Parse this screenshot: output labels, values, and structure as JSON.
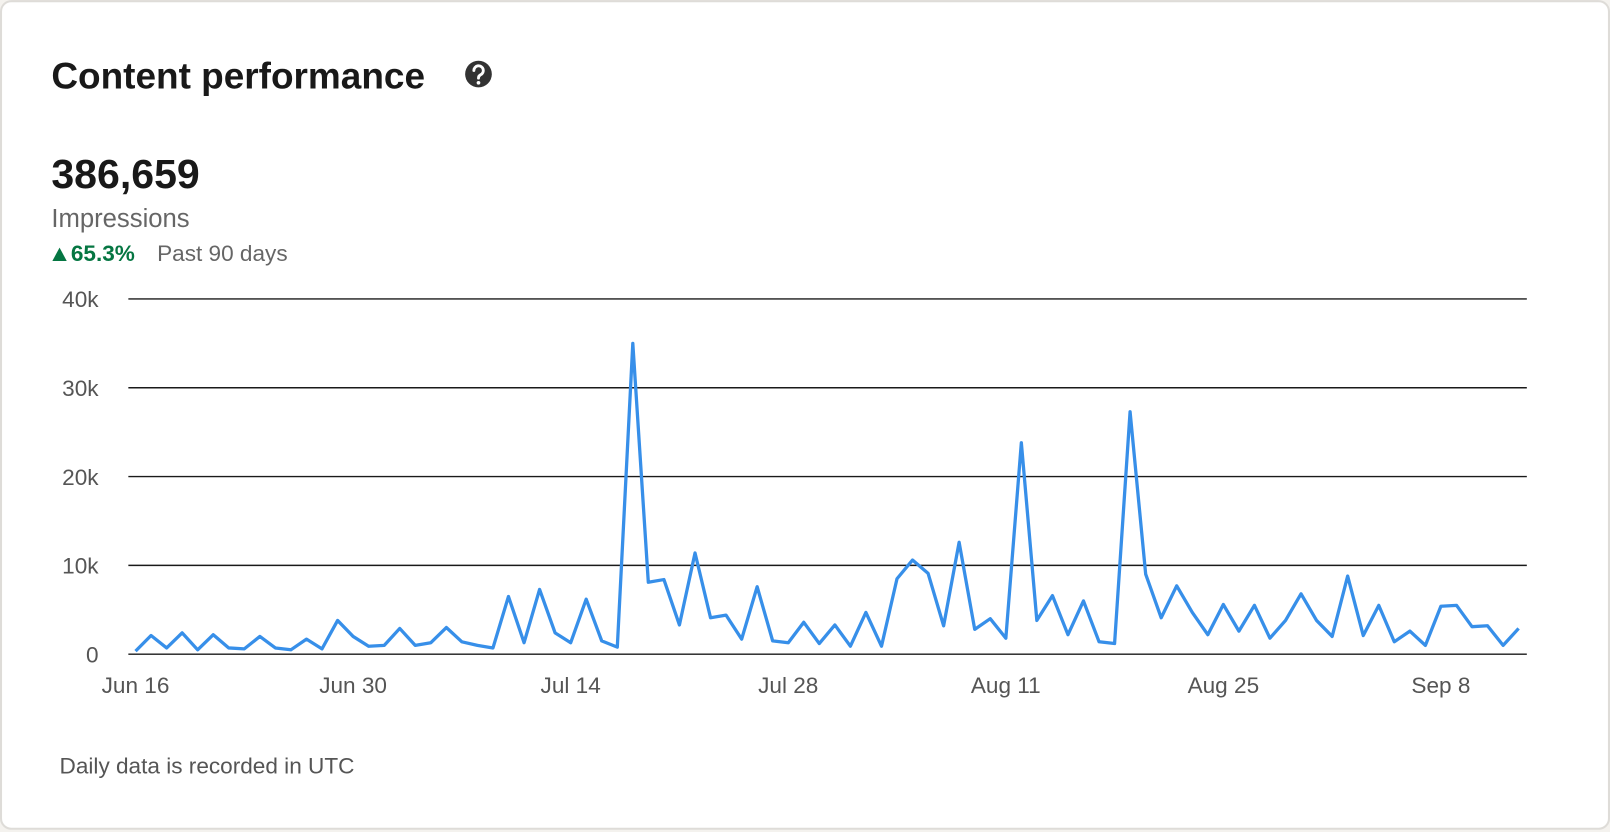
{
  "card": {
    "title": "Content performance",
    "metric_value": "386,659",
    "metric_label": "Impressions",
    "change": "65.3%",
    "period": "Past 90 days",
    "footnote": "Daily data is recorded in UTC"
  },
  "chart_data": {
    "type": "line",
    "categories": [
      "Jun 16",
      null,
      null,
      null,
      null,
      null,
      null,
      null,
      null,
      null,
      null,
      null,
      null,
      null,
      "Jun 30",
      null,
      null,
      null,
      null,
      null,
      null,
      null,
      null,
      null,
      null,
      null,
      null,
      null,
      "Jul 14",
      null,
      null,
      null,
      null,
      null,
      null,
      null,
      null,
      null,
      null,
      null,
      null,
      null,
      "Jul 28",
      null,
      null,
      null,
      null,
      null,
      null,
      null,
      null,
      null,
      null,
      null,
      null,
      null,
      "Aug 11",
      null,
      null,
      null,
      null,
      null,
      null,
      null,
      null,
      null,
      null,
      null,
      null,
      null,
      "Aug 25",
      null,
      null,
      null,
      null,
      null,
      null,
      null,
      null,
      null,
      null,
      null,
      null,
      null,
      "Sep 8",
      null,
      null,
      null,
      null,
      null
    ],
    "series": [
      {
        "name": "Impressions",
        "color": "#378fe9",
        "values": [
          350,
          2100,
          700,
          2400,
          500,
          2200,
          700,
          600,
          2000,
          700,
          500,
          1700,
          600,
          3800,
          2000,
          900,
          1000,
          2900,
          1000,
          1300,
          3000,
          1400,
          1000,
          700,
          6500,
          1300,
          7300,
          2400,
          1300,
          6200,
          1500,
          800,
          35000,
          8100,
          8400,
          3300,
          11400,
          4100,
          4400,
          1700,
          7600,
          1500,
          1300,
          3600,
          1200,
          3300,
          900,
          4700,
          900,
          8500,
          10600,
          9100,
          3200,
          12600,
          2800,
          4000,
          1800,
          23800,
          3800,
          6600,
          2200,
          6000,
          1400,
          1200,
          27300,
          9000,
          4100,
          7700,
          4700,
          2200,
          5600,
          2600,
          5500,
          1800,
          3800,
          6800,
          3800,
          2000,
          8800,
          2100,
          5500,
          1400,
          2600,
          1000,
          5400,
          5500,
          3100,
          3200,
          1000,
          2900
        ]
      }
    ],
    "ylim": [
      0,
      40000
    ],
    "yticks": [
      0,
      {
        "value": 10000,
        "label": "10k"
      },
      {
        "value": 20000,
        "label": "20k"
      },
      {
        "value": 30000,
        "label": "30k"
      },
      {
        "value": 40000,
        "label": "40k"
      }
    ],
    "grid": true
  }
}
